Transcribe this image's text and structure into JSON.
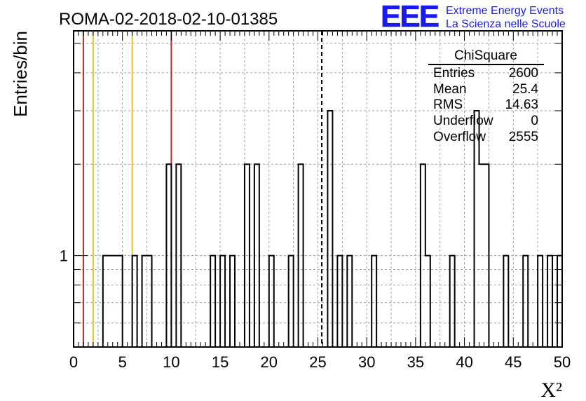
{
  "chart_data": {
    "type": "bar",
    "title": "ROMA-02-2018-02-10-01385",
    "xlabel": "X²",
    "ylabel": "Entries/bin",
    "xlim": [
      0,
      50
    ],
    "bin_width": 0.5,
    "y_scale": "log",
    "ylim": [
      0.5,
      5.5
    ],
    "x_ticks": [
      "0",
      "5",
      "10",
      "15",
      "20",
      "25",
      "30",
      "35",
      "40",
      "45",
      "50"
    ],
    "y_ticks": [
      "1"
    ],
    "grid": true,
    "histogram": {
      "bins_lo": [
        3,
        3.5,
        4,
        4.5,
        6,
        7,
        7.5,
        9.5,
        10.5,
        14,
        15,
        16,
        17.5,
        18.5,
        20,
        22,
        23,
        26,
        27,
        28,
        30.5,
        35.5,
        36,
        38.5,
        41,
        41.5,
        42,
        44,
        46,
        47.5,
        48.5,
        49.5
      ],
      "counts": [
        1,
        1,
        1,
        1,
        1,
        1,
        1,
        2,
        2,
        1,
        1,
        1,
        2,
        2,
        1,
        1,
        2,
        3,
        1,
        1,
        1,
        2,
        1,
        1,
        3,
        2,
        2,
        1,
        1,
        1,
        1,
        1
      ]
    },
    "reference_lines": {
      "red": [
        1,
        10
      ],
      "yellow": [
        2,
        6
      ],
      "dashed": [
        25.4
      ]
    },
    "stats_box": {
      "title": "ChiSquare",
      "rows": [
        {
          "label": "Entries",
          "value": "2600"
        },
        {
          "label": "Mean",
          "value": "25.4"
        },
        {
          "label": "RMS",
          "value": "14.63"
        },
        {
          "label": "Underflow",
          "value": "0"
        },
        {
          "label": "Overflow",
          "value": "2555"
        }
      ]
    }
  },
  "logo": {
    "mark": "EEE",
    "line1": "Extreme Energy Events",
    "line2": "La Scienza nelle Scuole"
  },
  "colors": {
    "histogram": "#000000",
    "red_line": "#d42020",
    "yellow_line": "#f0c020",
    "logo_blue": "#1a1aee",
    "grid": "#a0a0a0"
  }
}
